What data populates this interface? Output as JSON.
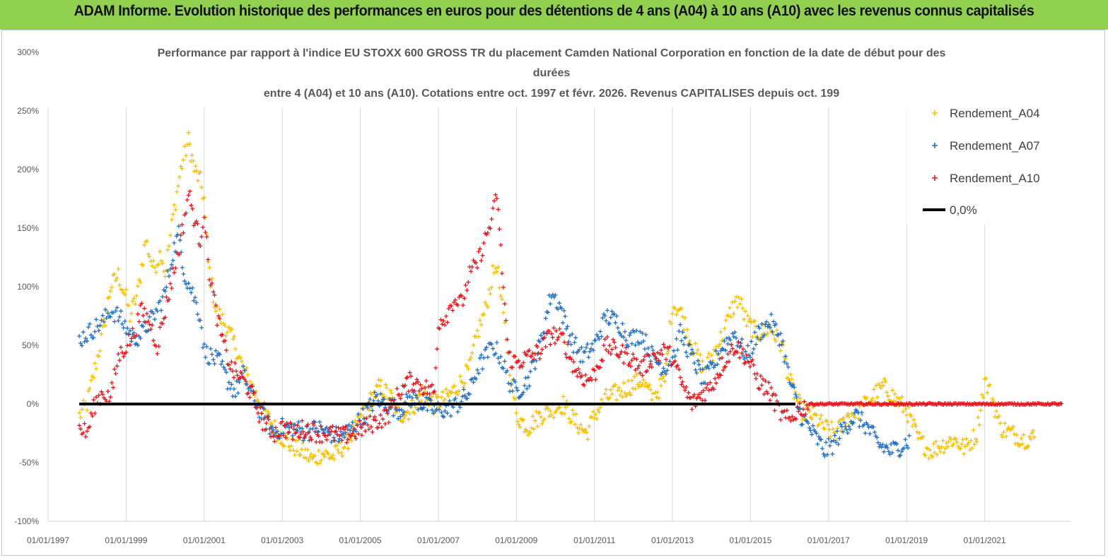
{
  "header": {
    "title": "ADAM Informe. Evolution historique des performances en euros pour des détentions de 4 ans (A04) à 10 ans (A10) avec les revenus connus capitalisés"
  },
  "chart_data": {
    "type": "scatter",
    "title_lines": [
      "Performance par rapport à l'indice EU STOXX 600 GROSS TR  du placement Camden National Corporation en fonction de la date de début pour des",
      "durées",
      "entre 4 (A04) et 10 ans (A10).  Cotations entre oct. 1997 et févr. 2026. Revenus CAPITALISES depuis oct. 199"
    ],
    "xlabel": "",
    "ylabel": "",
    "x_ticks": [
      "01/01/1997",
      "01/01/1999",
      "01/01/2001",
      "01/01/2003",
      "01/01/2005",
      "01/01/2007",
      "01/01/2009",
      "01/01/2011",
      "01/01/2013",
      "01/01/2015",
      "01/01/2017",
      "01/01/2019",
      "01/01/2021"
    ],
    "xlim": [
      1997.0,
      2023.2
    ],
    "y_ticks": [
      "300%",
      "250%",
      "200%",
      "150%",
      "100%",
      "50%",
      "0%",
      "-50%",
      "-100%"
    ],
    "ylim": [
      -100,
      300
    ],
    "grid": "vertical",
    "legend_position": "top-right",
    "series": [
      {
        "name": "Rendement_A04",
        "color": "#f5c000",
        "marker": "+",
        "points": [
          [
            1997.8,
            -10
          ],
          [
            1998.0,
            0
          ],
          [
            1998.2,
            30
          ],
          [
            1998.4,
            60
          ],
          [
            1998.6,
            100
          ],
          [
            1998.8,
            110
          ],
          [
            1999.0,
            90
          ],
          [
            1999.1,
            75
          ],
          [
            1999.3,
            95
          ],
          [
            1999.5,
            140
          ],
          [
            1999.7,
            115
          ],
          [
            1999.9,
            130
          ],
          [
            2000.0,
            110
          ],
          [
            2000.2,
            160
          ],
          [
            2000.4,
            200
          ],
          [
            2000.6,
            225
          ],
          [
            2000.75,
            200
          ],
          [
            2000.9,
            190
          ],
          [
            2001.0,
            175
          ],
          [
            2001.1,
            120
          ],
          [
            2001.3,
            80
          ],
          [
            2001.5,
            70
          ],
          [
            2001.8,
            50
          ],
          [
            2002.0,
            30
          ],
          [
            2002.3,
            10
          ],
          [
            2002.6,
            -10
          ],
          [
            2002.9,
            -25
          ],
          [
            2003.2,
            -35
          ],
          [
            2003.5,
            -40
          ],
          [
            2003.8,
            -48
          ],
          [
            2004.0,
            -42
          ],
          [
            2004.3,
            -45
          ],
          [
            2004.6,
            -35
          ],
          [
            2004.9,
            -20
          ],
          [
            2005.2,
            0
          ],
          [
            2005.5,
            15
          ],
          [
            2005.8,
            5
          ],
          [
            2006.0,
            -10
          ],
          [
            2006.3,
            -5
          ],
          [
            2006.6,
            10
          ],
          [
            2006.9,
            0
          ],
          [
            2007.2,
            5
          ],
          [
            2007.5,
            15
          ],
          [
            2007.8,
            30
          ],
          [
            2008.0,
            60
          ],
          [
            2008.2,
            80
          ],
          [
            2008.4,
            110
          ],
          [
            2008.5,
            120
          ],
          [
            2008.6,
            90
          ],
          [
            2008.8,
            40
          ],
          [
            2009.0,
            -10
          ],
          [
            2009.3,
            -20
          ],
          [
            2009.6,
            -10
          ],
          [
            2009.9,
            -5
          ],
          [
            2010.2,
            0
          ],
          [
            2010.5,
            -15
          ],
          [
            2010.8,
            -25
          ],
          [
            2011.0,
            -10
          ],
          [
            2011.3,
            5
          ],
          [
            2011.6,
            10
          ],
          [
            2011.9,
            15
          ],
          [
            2012.2,
            20
          ],
          [
            2012.5,
            5
          ],
          [
            2012.8,
            20
          ],
          [
            2013.0,
            85
          ],
          [
            2013.2,
            80
          ],
          [
            2013.5,
            50
          ],
          [
            2013.8,
            30
          ],
          [
            2014.0,
            40
          ],
          [
            2014.3,
            60
          ],
          [
            2014.5,
            80
          ],
          [
            2014.7,
            90
          ],
          [
            2014.9,
            70
          ],
          [
            2015.2,
            60
          ],
          [
            2015.5,
            65
          ],
          [
            2015.8,
            50
          ],
          [
            2016.0,
            20
          ],
          [
            2016.3,
            -5
          ],
          [
            2016.6,
            -10
          ],
          [
            2016.9,
            -20
          ],
          [
            2017.2,
            -25
          ],
          [
            2017.5,
            -10
          ],
          [
            2017.8,
            -5
          ],
          [
            2018.1,
            5
          ],
          [
            2018.4,
            15
          ],
          [
            2018.7,
            5
          ],
          [
            2019.0,
            -5
          ],
          [
            2019.3,
            -30
          ],
          [
            2019.6,
            -40
          ],
          [
            2019.9,
            -35
          ],
          [
            2020.2,
            -30
          ],
          [
            2020.5,
            -38
          ],
          [
            2020.8,
            -25
          ],
          [
            2021.0,
            20
          ],
          [
            2021.2,
            5
          ],
          [
            2021.4,
            -20
          ],
          [
            2021.7,
            -25
          ],
          [
            2022.0,
            -30
          ],
          [
            2022.3,
            -28
          ]
        ]
      },
      {
        "name": "Rendement_A07",
        "color": "#1f6fc5",
        "marker": "+",
        "points": [
          [
            1997.8,
            55
          ],
          [
            1998.0,
            60
          ],
          [
            1998.2,
            65
          ],
          [
            1998.4,
            70
          ],
          [
            1998.6,
            80
          ],
          [
            1998.8,
            75
          ],
          [
            1999.0,
            65
          ],
          [
            1999.2,
            55
          ],
          [
            1999.4,
            60
          ],
          [
            1999.6,
            70
          ],
          [
            1999.8,
            80
          ],
          [
            2000.0,
            95
          ],
          [
            2000.2,
            130
          ],
          [
            2000.35,
            145
          ],
          [
            2000.5,
            110
          ],
          [
            2000.7,
            95
          ],
          [
            2000.9,
            75
          ],
          [
            2001.0,
            45
          ],
          [
            2001.2,
            40
          ],
          [
            2001.4,
            35
          ],
          [
            2001.6,
            20
          ],
          [
            2001.8,
            10
          ],
          [
            2002.0,
            25
          ],
          [
            2002.2,
            10
          ],
          [
            2002.5,
            -10
          ],
          [
            2002.8,
            -25
          ],
          [
            2003.0,
            -20
          ],
          [
            2003.3,
            -20
          ],
          [
            2003.6,
            -25
          ],
          [
            2003.9,
            -20
          ],
          [
            2004.2,
            -25
          ],
          [
            2004.5,
            -28
          ],
          [
            2004.8,
            -20
          ],
          [
            2005.1,
            -10
          ],
          [
            2005.4,
            5
          ],
          [
            2005.7,
            0
          ],
          [
            2006.0,
            -5
          ],
          [
            2006.3,
            5
          ],
          [
            2006.6,
            0
          ],
          [
            2006.9,
            -5
          ],
          [
            2007.2,
            -5
          ],
          [
            2007.5,
            0
          ],
          [
            2007.8,
            10
          ],
          [
            2008.0,
            30
          ],
          [
            2008.2,
            40
          ],
          [
            2008.4,
            50
          ],
          [
            2008.6,
            40
          ],
          [
            2008.8,
            20
          ],
          [
            2009.0,
            10
          ],
          [
            2009.3,
            20
          ],
          [
            2009.6,
            50
          ],
          [
            2009.9,
            95
          ],
          [
            2010.1,
            85
          ],
          [
            2010.4,
            55
          ],
          [
            2010.7,
            40
          ],
          [
            2011.0,
            50
          ],
          [
            2011.3,
            75
          ],
          [
            2011.6,
            70
          ],
          [
            2011.9,
            55
          ],
          [
            2012.2,
            60
          ],
          [
            2012.5,
            40
          ],
          [
            2012.8,
            30
          ],
          [
            2013.0,
            40
          ],
          [
            2013.2,
            60
          ],
          [
            2013.5,
            40
          ],
          [
            2013.8,
            20
          ],
          [
            2014.0,
            30
          ],
          [
            2014.3,
            50
          ],
          [
            2014.6,
            60
          ],
          [
            2014.9,
            40
          ],
          [
            2015.2,
            60
          ],
          [
            2015.5,
            70
          ],
          [
            2015.8,
            55
          ],
          [
            2016.0,
            20
          ],
          [
            2016.3,
            -10
          ],
          [
            2016.6,
            -25
          ],
          [
            2016.9,
            -40
          ],
          [
            2017.1,
            -35
          ],
          [
            2017.4,
            -20
          ],
          [
            2017.7,
            -10
          ],
          [
            2018.0,
            -20
          ],
          [
            2018.3,
            -35
          ],
          [
            2018.6,
            -40
          ],
          [
            2018.9,
            -35
          ],
          [
            2019.1,
            -30
          ]
        ]
      },
      {
        "name": "Rendement_A10",
        "color": "#e8141c",
        "marker": "+",
        "points": [
          [
            1997.8,
            -20
          ],
          [
            1998.0,
            -25
          ],
          [
            1998.2,
            0
          ],
          [
            1998.4,
            10
          ],
          [
            1998.6,
            5
          ],
          [
            1998.8,
            40
          ],
          [
            1999.0,
            50
          ],
          [
            1999.2,
            60
          ],
          [
            1999.4,
            80
          ],
          [
            1999.6,
            70
          ],
          [
            1999.8,
            50
          ],
          [
            2000.0,
            80
          ],
          [
            2000.2,
            110
          ],
          [
            2000.4,
            140
          ],
          [
            2000.6,
            180
          ],
          [
            2000.8,
            150
          ],
          [
            2000.9,
            140
          ],
          [
            2001.0,
            165
          ],
          [
            2001.1,
            120
          ],
          [
            2001.3,
            80
          ],
          [
            2001.5,
            50
          ],
          [
            2001.7,
            30
          ],
          [
            2002.0,
            20
          ],
          [
            2002.2,
            10
          ],
          [
            2002.5,
            -15
          ],
          [
            2002.8,
            -25
          ],
          [
            2003.0,
            -20
          ],
          [
            2003.3,
            -25
          ],
          [
            2003.6,
            -20
          ],
          [
            2003.9,
            -25
          ],
          [
            2004.2,
            -25
          ],
          [
            2004.5,
            -28
          ],
          [
            2004.8,
            -25
          ],
          [
            2005.1,
            -20
          ],
          [
            2005.4,
            -15
          ],
          [
            2005.7,
            -10
          ],
          [
            2006.0,
            10
          ],
          [
            2006.3,
            20
          ],
          [
            2006.6,
            15
          ],
          [
            2006.9,
            10
          ],
          [
            2007.0,
            70
          ],
          [
            2007.2,
            75
          ],
          [
            2007.4,
            90
          ],
          [
            2007.6,
            85
          ],
          [
            2007.8,
            110
          ],
          [
            2008.0,
            120
          ],
          [
            2008.2,
            140
          ],
          [
            2008.4,
            160
          ],
          [
            2008.5,
            180
          ],
          [
            2008.6,
            130
          ],
          [
            2008.8,
            40
          ],
          [
            2009.0,
            35
          ],
          [
            2009.3,
            40
          ],
          [
            2009.6,
            45
          ],
          [
            2009.9,
            60
          ],
          [
            2010.2,
            55
          ],
          [
            2010.5,
            30
          ],
          [
            2010.8,
            20
          ],
          [
            2011.0,
            25
          ],
          [
            2011.3,
            50
          ],
          [
            2011.6,
            45
          ],
          [
            2011.9,
            40
          ],
          [
            2012.2,
            30
          ],
          [
            2012.5,
            40
          ],
          [
            2012.8,
            45
          ],
          [
            2013.0,
            40
          ],
          [
            2013.2,
            20
          ],
          [
            2013.5,
            0
          ],
          [
            2013.8,
            10
          ],
          [
            2014.0,
            15
          ],
          [
            2014.3,
            35
          ],
          [
            2014.6,
            50
          ],
          [
            2014.9,
            40
          ],
          [
            2015.2,
            20
          ],
          [
            2015.5,
            10
          ],
          [
            2015.8,
            -10
          ],
          [
            2016.0,
            -15
          ],
          [
            2016.2,
            -5
          ],
          [
            2016.5,
            0
          ],
          [
            2017.0,
            0
          ],
          [
            2018.0,
            0
          ],
          [
            2019.0,
            0
          ],
          [
            2020.0,
            0
          ],
          [
            2021.0,
            0
          ],
          [
            2022.0,
            0
          ],
          [
            2023.0,
            0
          ]
        ]
      }
    ],
    "reference_line": {
      "name": "0,0%",
      "value": 0,
      "color": "#000000"
    }
  }
}
